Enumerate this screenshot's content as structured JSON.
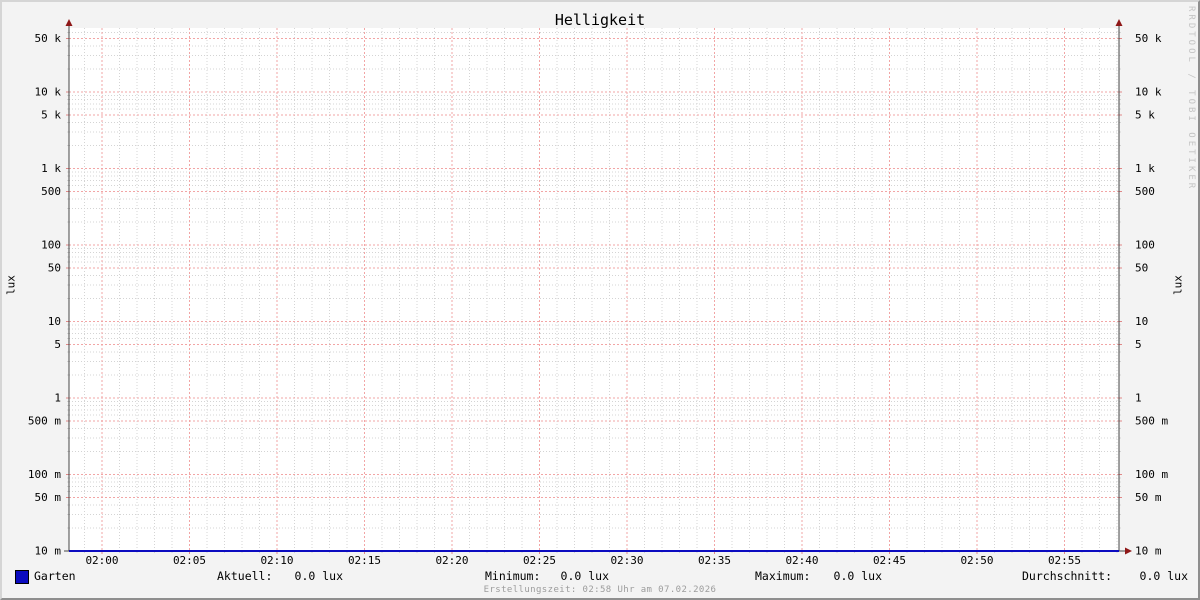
{
  "title": "Helligkeit",
  "watermark": "RRDTOOL / TOBI OETIKER",
  "footer": "Erstellungszeit: 02:58 Uhr am 07.02.2026",
  "colors": {
    "background": "#f3f3f3",
    "canvas": "#ffffff",
    "grid_minor": "#d4d4d4",
    "grid_major": "#f2a5a5",
    "tick_major": "#e08888",
    "axis": "#444444",
    "arrow": "#8e1717",
    "text": "#000000",
    "footer_text": "#9c9c9c",
    "watermark_text": "#c4c4c4",
    "series_blue": "#0b0bc0"
  },
  "legend": {
    "series_label": "Garten",
    "stats": [
      {
        "label": "Aktuell:",
        "value": "0.0 lux"
      },
      {
        "label": "Minimum:",
        "value": "0.0 lux"
      },
      {
        "label": "Maximum:",
        "value": "0.0 lux"
      },
      {
        "label": "Durchschnitt:",
        "value": "0.0 lux"
      }
    ]
  },
  "chart_data": {
    "type": "line",
    "title": "Helligkeit",
    "ylabel": "lux",
    "xlabel": "",
    "y_scale": "log",
    "ylim": [
      0.01,
      69000
    ],
    "grid": true,
    "y_major_ticks": [
      {
        "value": 50000,
        "label": "50 k"
      },
      {
        "value": 10000,
        "label": "10 k"
      },
      {
        "value": 5000,
        "label": "5 k"
      },
      {
        "value": 1000,
        "label": "1 k"
      },
      {
        "value": 500,
        "label": "500"
      },
      {
        "value": 100,
        "label": "100"
      },
      {
        "value": 50,
        "label": "50"
      },
      {
        "value": 10,
        "label": "10"
      },
      {
        "value": 5,
        "label": "5"
      },
      {
        "value": 1,
        "label": "1"
      },
      {
        "value": 0.5,
        "label": "500 m"
      },
      {
        "value": 0.1,
        "label": "100 m"
      },
      {
        "value": 0.05,
        "label": "50 m"
      },
      {
        "value": 0.01,
        "label": "10 m"
      }
    ],
    "x_ticks": [
      "02:00",
      "02:05",
      "02:10",
      "02:15",
      "02:20",
      "02:25",
      "02:30",
      "02:35",
      "02:40",
      "02:45",
      "02:50",
      "02:55"
    ],
    "x_minor_interval_minutes": 1,
    "x_range": [
      "01:58",
      "02:58"
    ],
    "series": [
      {
        "name": "Garten",
        "color": "#0b0bc0",
        "unit": "lux",
        "constant_value": 0.0,
        "stats": {
          "aktuell": 0.0,
          "minimum": 0.0,
          "maximum": 0.0,
          "durchschnitt": 0.0
        }
      }
    ]
  }
}
